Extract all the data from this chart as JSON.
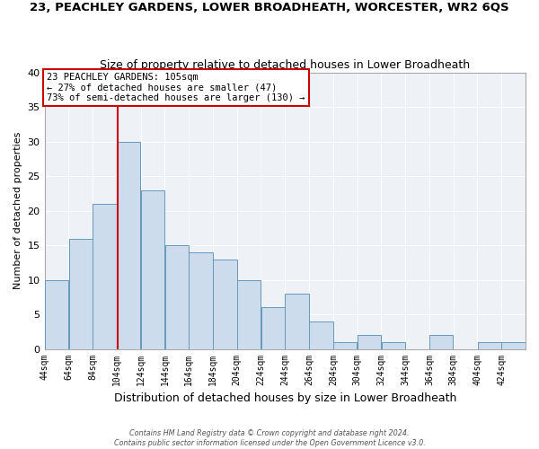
{
  "title": "23, PEACHLEY GARDENS, LOWER BROADHEATH, WORCESTER, WR2 6QS",
  "subtitle": "Size of property relative to detached houses in Lower Broadheath",
  "xlabel": "Distribution of detached houses by size in Lower Broadheath",
  "ylabel": "Number of detached properties",
  "bar_color": "#ccdcec",
  "bar_edge_color": "#6699bb",
  "background_color": "#ffffff",
  "plot_bg_color": "#eef2f7",
  "grid_color": "#ffffff",
  "bins": [
    44,
    64,
    84,
    104,
    124,
    144,
    164,
    184,
    204,
    224,
    244,
    264,
    284,
    304,
    324,
    344,
    364,
    384,
    404,
    424,
    444
  ],
  "counts": [
    10,
    16,
    21,
    30,
    23,
    15,
    14,
    13,
    10,
    6,
    8,
    4,
    1,
    2,
    1,
    0,
    2,
    0,
    1,
    1
  ],
  "property_line_x": 105,
  "property_line_color": "#cc0000",
  "annotation_line1": "23 PEACHLEY GARDENS: 105sqm",
  "annotation_line2": "← 27% of detached houses are smaller (47)",
  "annotation_line3": "73% of semi-detached houses are larger (130) →",
  "annotation_box_edge": "#cc0000",
  "ylim": [
    0,
    40
  ],
  "yticks": [
    0,
    5,
    10,
    15,
    20,
    25,
    30,
    35,
    40
  ],
  "footer1": "Contains HM Land Registry data © Crown copyright and database right 2024.",
  "footer2": "Contains public sector information licensed under the Open Government Licence v3.0."
}
